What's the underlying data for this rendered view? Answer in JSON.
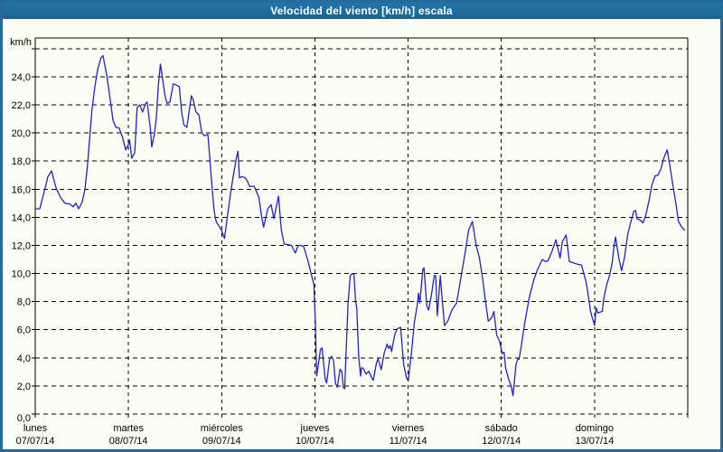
{
  "window": {
    "title": "Velocidad del viento [km/h] escala"
  },
  "colors": {
    "titlebar_bg": "#1e6b9e",
    "titlebar_text": "#ffffff",
    "outer_border": "#27699a",
    "page_bg": "#fcfdf4",
    "grid": "#000000",
    "frame": "#000000",
    "series": "#2222c8",
    "tick_label": "#000000"
  },
  "chart_data": {
    "type": "line",
    "title": "Velocidad del viento [km/h] escala",
    "y_axis_title": "km/h",
    "xlabel": "",
    "ylabel": "km/h",
    "grid": "dashed",
    "legend": "none",
    "ylim": [
      0,
      26.76
    ],
    "y_tick_step": 2,
    "y_grid_max": 26,
    "y_ticks": [
      {
        "value": 0,
        "label": "0,0"
      },
      {
        "value": 2,
        "label": "2,0"
      },
      {
        "value": 4,
        "label": "4,0"
      },
      {
        "value": 6,
        "label": "6,0"
      },
      {
        "value": 8,
        "label": "8,0"
      },
      {
        "value": 10,
        "label": "10,0"
      },
      {
        "value": 12,
        "label": "12,0"
      },
      {
        "value": 14,
        "label": "14,0"
      },
      {
        "value": 16,
        "label": "16,0"
      },
      {
        "value": 18,
        "label": "18,0"
      },
      {
        "value": 20,
        "label": "20,0"
      },
      {
        "value": 22,
        "label": "22,0"
      },
      {
        "value": 24,
        "label": "24,0"
      }
    ],
    "x_ticks": [
      {
        "day": "lunes",
        "date": "07/07/14"
      },
      {
        "day": "martes",
        "date": "08/07/14"
      },
      {
        "day": "miércoles",
        "date": "09/07/14"
      },
      {
        "day": "jueves",
        "date": "10/07/14"
      },
      {
        "day": "viernes",
        "date": "11/07/14"
      },
      {
        "day": "sábado",
        "date": "12/07/14"
      },
      {
        "day": "domingo",
        "date": "13/07/14"
      }
    ],
    "x_unit": "days",
    "x_range": [
      0,
      7
    ],
    "series": [
      {
        "name": "Velocidad del viento [km/h]",
        "color": "#2222c8",
        "points": [
          [
            0.0,
            14.6
          ],
          [
            0.048,
            14.6
          ],
          [
            0.107,
            16.1
          ],
          [
            0.136,
            16.9
          ],
          [
            0.175,
            17.3
          ],
          [
            0.223,
            16.1
          ],
          [
            0.272,
            15.4
          ],
          [
            0.32,
            15.0
          ],
          [
            0.369,
            14.95
          ],
          [
            0.407,
            14.75
          ],
          [
            0.436,
            15.0
          ],
          [
            0.466,
            14.6
          ],
          [
            0.504,
            15.1
          ],
          [
            0.533,
            16.0
          ],
          [
            0.563,
            17.9
          ],
          [
            0.58,
            19.3
          ],
          [
            0.608,
            21.6
          ],
          [
            0.64,
            23.3
          ],
          [
            0.672,
            24.6
          ],
          [
            0.705,
            25.35
          ],
          [
            0.727,
            25.5
          ],
          [
            0.77,
            24.0
          ],
          [
            0.802,
            22.5
          ],
          [
            0.834,
            20.9
          ],
          [
            0.866,
            20.4
          ],
          [
            0.9,
            20.35
          ],
          [
            0.937,
            19.7
          ],
          [
            0.97,
            18.8
          ],
          [
            1.002,
            19.2
          ],
          [
            1.012,
            19.5
          ],
          [
            1.035,
            18.2
          ],
          [
            1.067,
            18.6
          ],
          [
            1.093,
            21.8
          ],
          [
            1.12,
            22.0
          ],
          [
            1.152,
            21.5
          ],
          [
            1.185,
            22.1
          ],
          [
            1.2,
            22.2
          ],
          [
            1.235,
            20.3
          ],
          [
            1.25,
            19.0
          ],
          [
            1.28,
            20.0
          ],
          [
            1.3,
            21.15
          ],
          [
            1.32,
            23.3
          ],
          [
            1.343,
            24.9
          ],
          [
            1.367,
            23.8
          ],
          [
            1.396,
            22.5
          ],
          [
            1.416,
            22.1
          ],
          [
            1.445,
            22.2
          ],
          [
            1.48,
            23.5
          ],
          [
            1.513,
            23.4
          ],
          [
            1.545,
            23.3
          ],
          [
            1.571,
            21.5
          ],
          [
            1.594,
            20.6
          ],
          [
            1.627,
            20.4
          ],
          [
            1.65,
            21.5
          ],
          [
            1.675,
            22.65
          ],
          [
            1.697,
            22.3
          ],
          [
            1.723,
            21.5
          ],
          [
            1.755,
            21.3
          ],
          [
            1.788,
            20.0
          ],
          [
            1.814,
            19.8
          ],
          [
            1.852,
            19.9
          ],
          [
            1.869,
            18.5
          ],
          [
            1.884,
            17.2
          ],
          [
            1.9,
            15.9
          ],
          [
            1.917,
            14.6
          ],
          [
            1.933,
            13.9
          ],
          [
            1.949,
            13.6
          ],
          [
            1.965,
            13.45
          ],
          [
            1.997,
            13.1
          ],
          [
            2.013,
            12.8
          ],
          [
            2.03,
            12.5
          ],
          [
            2.062,
            14.1
          ],
          [
            2.094,
            15.65
          ],
          [
            2.127,
            17.05
          ],
          [
            2.16,
            18.3
          ],
          [
            2.176,
            18.7
          ],
          [
            2.19,
            16.8
          ],
          [
            2.22,
            16.9
          ],
          [
            2.254,
            16.8
          ],
          [
            2.28,
            16.5
          ],
          [
            2.3,
            16.2
          ],
          [
            2.35,
            16.2
          ],
          [
            2.4,
            15.4
          ],
          [
            2.43,
            14.0
          ],
          [
            2.45,
            13.3
          ],
          [
            2.495,
            14.6
          ],
          [
            2.53,
            14.9
          ],
          [
            2.56,
            13.9
          ],
          [
            2.61,
            15.5
          ],
          [
            2.64,
            13.1
          ],
          [
            2.67,
            12.1
          ],
          [
            2.71,
            12.05
          ],
          [
            2.75,
            12.0
          ],
          [
            2.79,
            11.45
          ],
          [
            2.82,
            12.0
          ],
          [
            2.85,
            12.0
          ],
          [
            2.88,
            11.9
          ],
          [
            2.93,
            10.8
          ],
          [
            2.965,
            9.85
          ],
          [
            2.99,
            9.2
          ],
          [
            3.006,
            6.4
          ],
          [
            3.019,
            2.7
          ],
          [
            3.06,
            4.6
          ],
          [
            3.077,
            4.7
          ],
          [
            3.11,
            2.5
          ],
          [
            3.126,
            2.2
          ],
          [
            3.158,
            3.9
          ],
          [
            3.18,
            4.1
          ],
          [
            3.2,
            3.8
          ],
          [
            3.22,
            2.2
          ],
          [
            3.24,
            1.9
          ],
          [
            3.27,
            3.2
          ],
          [
            3.29,
            3.0
          ],
          [
            3.305,
            1.9
          ],
          [
            3.32,
            1.8
          ],
          [
            3.34,
            5.3
          ],
          [
            3.356,
            7.9
          ],
          [
            3.38,
            9.85
          ],
          [
            3.4,
            10.0
          ],
          [
            3.42,
            9.9
          ],
          [
            3.436,
            8.1
          ],
          [
            3.45,
            7.5
          ],
          [
            3.47,
            4.1
          ],
          [
            3.49,
            2.7
          ],
          [
            3.5,
            3.3
          ],
          [
            3.517,
            3.27
          ],
          [
            3.549,
            2.84
          ],
          [
            3.578,
            3.05
          ],
          [
            3.614,
            2.52
          ],
          [
            3.626,
            2.4
          ],
          [
            3.662,
            3.7
          ],
          [
            3.678,
            3.91
          ],
          [
            3.711,
            3.16
          ],
          [
            3.743,
            4.34
          ],
          [
            3.775,
            4.98
          ],
          [
            3.791,
            4.66
          ],
          [
            3.808,
            4.87
          ],
          [
            3.823,
            4.45
          ],
          [
            3.856,
            5.63
          ],
          [
            3.881,
            6.06
          ],
          [
            3.92,
            6.16
          ],
          [
            3.953,
            3.49
          ],
          [
            3.985,
            2.52
          ],
          [
            4.002,
            2.41
          ],
          [
            4.017,
            3.27
          ],
          [
            4.034,
            4.23
          ],
          [
            4.066,
            6.48
          ],
          [
            4.099,
            7.8
          ],
          [
            4.112,
            8.6
          ],
          [
            4.125,
            7.9
          ],
          [
            4.158,
            10.3
          ],
          [
            4.171,
            10.4
          ],
          [
            4.2,
            7.7
          ],
          [
            4.22,
            7.4
          ],
          [
            4.25,
            8.5
          ],
          [
            4.28,
            9.85
          ],
          [
            4.296,
            9.85
          ],
          [
            4.313,
            7.0
          ],
          [
            4.345,
            9.85
          ],
          [
            4.36,
            8.6
          ],
          [
            4.39,
            6.3
          ],
          [
            4.425,
            6.6
          ],
          [
            4.47,
            7.4
          ],
          [
            4.52,
            7.9
          ],
          [
            4.57,
            9.85
          ],
          [
            4.62,
            11.8
          ],
          [
            4.65,
            13.1
          ],
          [
            4.69,
            13.7
          ],
          [
            4.73,
            12.0
          ],
          [
            4.765,
            11.1
          ],
          [
            4.8,
            9.6
          ],
          [
            4.83,
            8.0
          ],
          [
            4.86,
            6.6
          ],
          [
            4.9,
            6.9
          ],
          [
            4.92,
            7.3
          ],
          [
            4.95,
            5.6
          ],
          [
            4.98,
            5.2
          ],
          [
            5.01,
            4.3
          ],
          [
            5.03,
            4.4
          ],
          [
            5.045,
            3.3
          ],
          [
            5.077,
            2.5
          ],
          [
            5.106,
            2.0
          ],
          [
            5.125,
            1.3
          ],
          [
            5.157,
            3.5
          ],
          [
            5.174,
            3.9
          ],
          [
            5.19,
            3.9
          ],
          [
            5.206,
            4.5
          ],
          [
            5.254,
            6.6
          ],
          [
            5.303,
            8.4
          ],
          [
            5.351,
            9.6
          ],
          [
            5.39,
            10.3
          ],
          [
            5.44,
            11.0
          ],
          [
            5.47,
            10.85
          ],
          [
            5.5,
            10.9
          ],
          [
            5.545,
            11.6
          ],
          [
            5.585,
            12.4
          ],
          [
            5.63,
            11.1
          ],
          [
            5.654,
            12.27
          ],
          [
            5.695,
            12.75
          ],
          [
            5.73,
            10.85
          ],
          [
            5.8,
            10.7
          ],
          [
            5.86,
            10.6
          ],
          [
            5.905,
            9.5
          ],
          [
            5.925,
            8.8
          ],
          [
            5.94,
            8.1
          ],
          [
            5.956,
            7.35
          ],
          [
            5.973,
            6.9
          ],
          [
            5.99,
            6.55
          ],
          [
            6.0,
            6.3
          ],
          [
            6.017,
            7.55
          ],
          [
            6.034,
            7.2
          ],
          [
            6.06,
            7.25
          ],
          [
            6.083,
            7.3
          ],
          [
            6.099,
            8.2
          ],
          [
            6.13,
            9.2
          ],
          [
            6.16,
            9.85
          ],
          [
            6.19,
            10.8
          ],
          [
            6.21,
            12.0
          ],
          [
            6.225,
            12.6
          ],
          [
            6.26,
            11.1
          ],
          [
            6.29,
            10.2
          ],
          [
            6.32,
            11.1
          ],
          [
            6.355,
            12.75
          ],
          [
            6.39,
            13.7
          ],
          [
            6.42,
            14.4
          ],
          [
            6.44,
            14.5
          ],
          [
            6.455,
            13.9
          ],
          [
            6.49,
            13.8
          ],
          [
            6.52,
            13.6
          ],
          [
            6.55,
            14.15
          ],
          [
            6.585,
            15.2
          ],
          [
            6.615,
            16.3
          ],
          [
            6.65,
            16.95
          ],
          [
            6.68,
            17.0
          ],
          [
            6.71,
            17.4
          ],
          [
            6.745,
            18.25
          ],
          [
            6.78,
            18.8
          ],
          [
            6.81,
            17.6
          ],
          [
            6.84,
            16.3
          ],
          [
            6.87,
            15.1
          ],
          [
            6.9,
            13.7
          ],
          [
            6.935,
            13.3
          ],
          [
            6.965,
            13.1
          ]
        ]
      }
    ]
  }
}
